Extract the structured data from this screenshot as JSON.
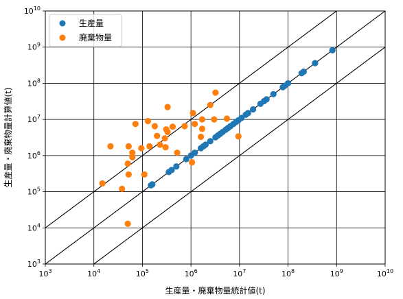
{
  "chart_data": {
    "type": "scatter",
    "title": "",
    "xlabel": "生産量・廃棄物量統計値(t)",
    "ylabel": "生産量・廃棄物量計算値(t)",
    "xscale": "log",
    "yscale": "log",
    "xlim": [
      1000,
      10000000000
    ],
    "ylim": [
      1000,
      10000000000
    ],
    "grid": true,
    "legend_position": "top-left",
    "x_ticks": [
      {
        "value": 1000,
        "base": "10",
        "exp": "3"
      },
      {
        "value": 10000,
        "base": "10",
        "exp": "4"
      },
      {
        "value": 100000,
        "base": "10",
        "exp": "5"
      },
      {
        "value": 1000000,
        "base": "10",
        "exp": "6"
      },
      {
        "value": 10000000,
        "base": "10",
        "exp": "7"
      },
      {
        "value": 100000000,
        "base": "10",
        "exp": "8"
      },
      {
        "value": 1000000000,
        "base": "10",
        "exp": "9"
      },
      {
        "value": 10000000000,
        "base": "10",
        "exp": "10"
      }
    ],
    "y_ticks": [
      {
        "value": 1000,
        "base": "10",
        "exp": "3"
      },
      {
        "value": 10000,
        "base": "10",
        "exp": "4"
      },
      {
        "value": 100000,
        "base": "10",
        "exp": "5"
      },
      {
        "value": 1000000,
        "base": "10",
        "exp": "6"
      },
      {
        "value": 10000000,
        "base": "10",
        "exp": "7"
      },
      {
        "value": 100000000,
        "base": "10",
        "exp": "8"
      },
      {
        "value": 1000000000,
        "base": "10",
        "exp": "9"
      },
      {
        "value": 10000000000,
        "base": "10",
        "exp": "10"
      }
    ],
    "reference_lines": [
      {
        "ratio": 10,
        "color": "#000000"
      },
      {
        "ratio": 1,
        "color": "#000000"
      },
      {
        "ratio": 0.1,
        "color": "#000000"
      }
    ],
    "series": [
      {
        "name": "生産量",
        "color": "#1f77b4",
        "points": [
          [
            150000,
            150000
          ],
          [
            160000,
            160000
          ],
          [
            350000,
            350000
          ],
          [
            400000,
            400000
          ],
          [
            500000,
            500000
          ],
          [
            800000,
            800000
          ],
          [
            1000000,
            1000000
          ],
          [
            1200000,
            1200000
          ],
          [
            1600000,
            1600000
          ],
          [
            1800000,
            1800000
          ],
          [
            2000000,
            2000000
          ],
          [
            2500000,
            2500000
          ],
          [
            3200000,
            3200000
          ],
          [
            3600000,
            3600000
          ],
          [
            4000000,
            4000000
          ],
          [
            4500000,
            4500000
          ],
          [
            5200000,
            5200000
          ],
          [
            5800000,
            5800000
          ],
          [
            6500000,
            6500000
          ],
          [
            7500000,
            7500000
          ],
          [
            8500000,
            8500000
          ],
          [
            9500000,
            9500000
          ],
          [
            11000000,
            11000000
          ],
          [
            13500000,
            13500000
          ],
          [
            15000000,
            15000000
          ],
          [
            19000000,
            19000000
          ],
          [
            27000000,
            27000000
          ],
          [
            32000000,
            32000000
          ],
          [
            36000000,
            36000000
          ],
          [
            50000000,
            50000000
          ],
          [
            78000000,
            78000000
          ],
          [
            85000000,
            85000000
          ],
          [
            100000000,
            100000000
          ],
          [
            190000000,
            190000000
          ],
          [
            210000000,
            210000000
          ],
          [
            360000000,
            360000000
          ],
          [
            820000000,
            820000000
          ]
        ]
      },
      {
        "name": "廃棄物量",
        "color": "#ff7f0e",
        "points": [
          [
            15000,
            170000
          ],
          [
            22000,
            1800000
          ],
          [
            38000,
            120000
          ],
          [
            50000,
            13000
          ],
          [
            50000,
            600000
          ],
          [
            52000,
            1800000
          ],
          [
            52000,
            300000
          ],
          [
            62000,
            1200000
          ],
          [
            62000,
            900000
          ],
          [
            72000,
            7500000
          ],
          [
            95000,
            1600000
          ],
          [
            110000,
            300000
          ],
          [
            130000,
            9000000
          ],
          [
            140000,
            1800000
          ],
          [
            180000,
            6500000
          ],
          [
            200000,
            3500000
          ],
          [
            230000,
            2000000
          ],
          [
            290000,
            3000000
          ],
          [
            300000,
            1700000
          ],
          [
            310000,
            5300000
          ],
          [
            330000,
            22000000
          ],
          [
            330000,
            4500000
          ],
          [
            420000,
            6300000
          ],
          [
            520000,
            1200000
          ],
          [
            740000,
            6500000
          ],
          [
            1050000,
            650000
          ],
          [
            1100000,
            15000000
          ],
          [
            1200000,
            7500000
          ],
          [
            1600000,
            3300000
          ],
          [
            1700000,
            5500000
          ],
          [
            1700000,
            10000000
          ],
          [
            2500000,
            25000000
          ],
          [
            3000000,
            10000000
          ],
          [
            3200000,
            55000000
          ],
          [
            5500000,
            10500000
          ],
          [
            9500000,
            3400000
          ]
        ]
      }
    ]
  }
}
